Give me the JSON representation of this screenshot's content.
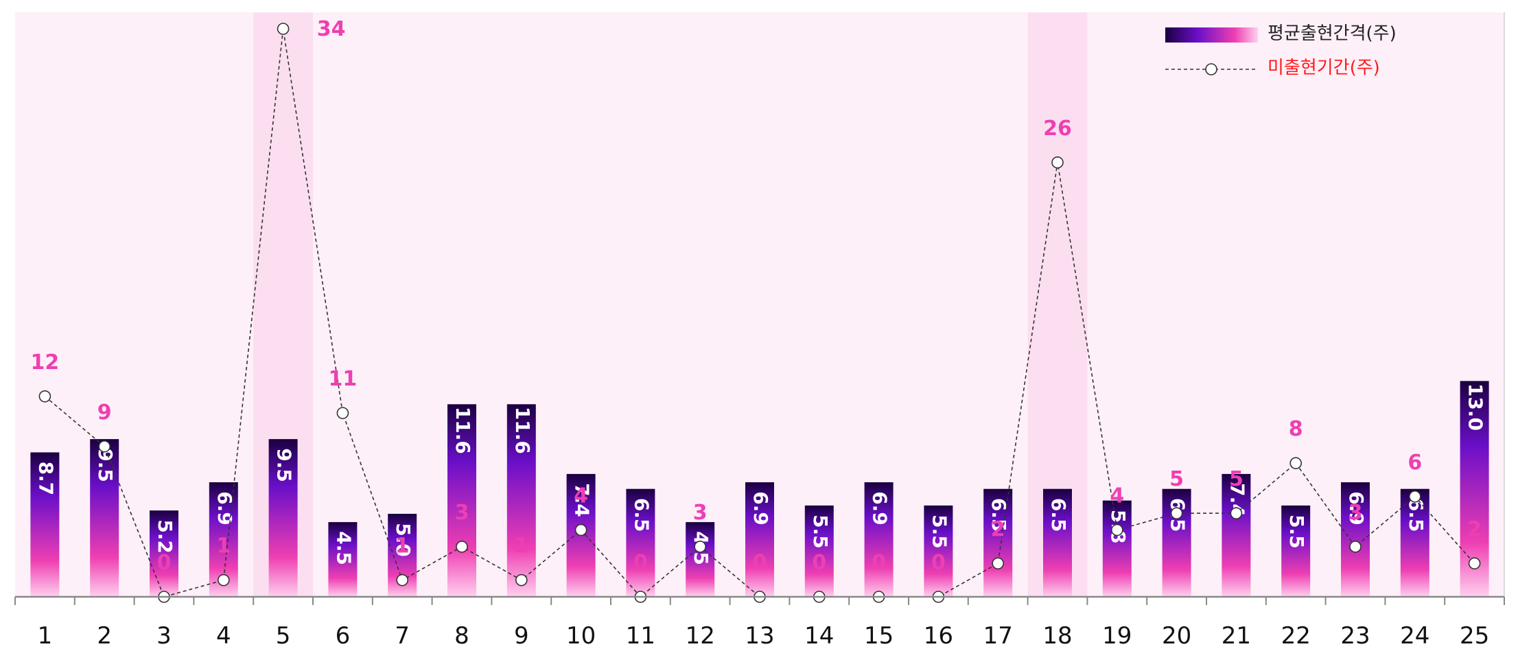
{
  "chart_data": {
    "type": "bar",
    "categories": [
      "1",
      "2",
      "3",
      "4",
      "5",
      "6",
      "7",
      "8",
      "9",
      "10",
      "11",
      "12",
      "13",
      "14",
      "15",
      "16",
      "17",
      "18",
      "19",
      "20",
      "21",
      "22",
      "23",
      "24",
      "25"
    ],
    "series": [
      {
        "name": "평균출현간격(주)",
        "type": "bar",
        "values": [
          8.7,
          9.5,
          5.2,
          6.9,
          9.5,
          4.5,
          5.0,
          11.6,
          11.6,
          7.4,
          6.5,
          4.5,
          6.9,
          5.5,
          6.9,
          5.5,
          6.5,
          6.5,
          5.8,
          6.5,
          7.4,
          5.5,
          6.9,
          6.5,
          13.0
        ],
        "labels": [
          "8.7",
          "9.5",
          "5.2",
          "6.9",
          "9.5",
          "4.5",
          "5.0",
          "11.6",
          "11.6",
          "7.4",
          "6.5",
          "4.5",
          "6.9",
          "5.5",
          "6.9",
          "5.5",
          "6.5",
          "6.5",
          "5.8",
          "6.5",
          "7.4",
          "5.5",
          "6.9",
          "6.5",
          "13.0"
        ]
      },
      {
        "name": "미출현기간(주)",
        "type": "line",
        "values": [
          12,
          9,
          0,
          1,
          34,
          11,
          1,
          3,
          1,
          4,
          0,
          3,
          0,
          0,
          0,
          0,
          2,
          26,
          4,
          5,
          5,
          8,
          3,
          6,
          2
        ],
        "labels": [
          "12",
          "9",
          "0",
          "1",
          "34",
          "11",
          "1",
          "3",
          "1",
          "4",
          "0",
          "3",
          "0",
          "0",
          "0",
          "0",
          "2",
          "26",
          "4",
          "5",
          "5",
          "8",
          "3",
          "6",
          "2"
        ]
      }
    ],
    "highlighted_categories": [
      "5",
      "18"
    ],
    "ylim": [
      0,
      35
    ],
    "grid": false,
    "legend_position": "top-right",
    "colors": {
      "plot_background": "#fdf0f8",
      "highlight_band": "#fbdff0",
      "bar_gradient_top": "#1a0040",
      "bar_gradient_mid": "#6a0fc8",
      "bar_gradient_bottom": "#ffd0ee",
      "bar_gradient_pink": "#ee3fb2",
      "gap_label": "#ee3fb2",
      "legend_line_text": "#ff1a1a",
      "axis": "#888888"
    }
  }
}
